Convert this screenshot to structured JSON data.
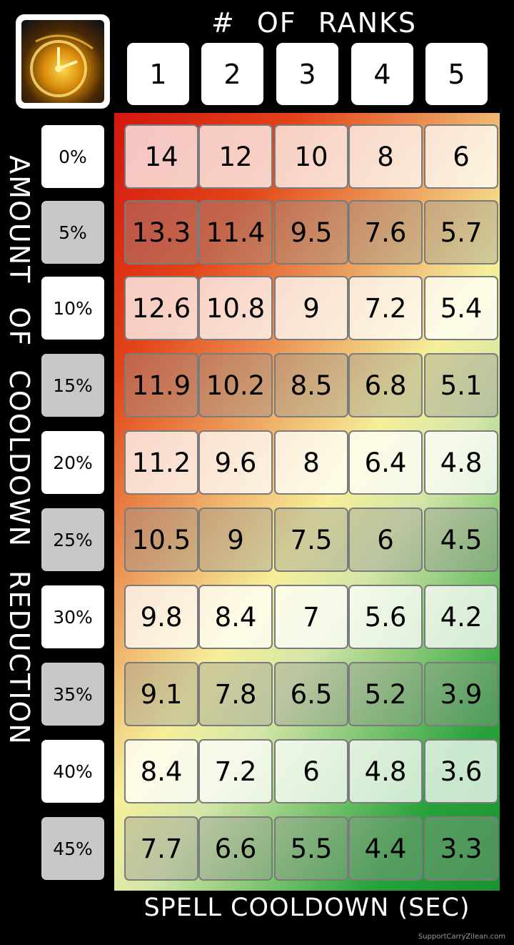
{
  "chart_data": {
    "type": "table",
    "title": "# OF RANKS",
    "ylabel": "AMOUNT OF COOLDOWN REDUCTION",
    "xlabel": "SPELL COOLDOWN (SEC)",
    "columns": [
      "1",
      "2",
      "3",
      "4",
      "5"
    ],
    "rows": [
      "0%",
      "5%",
      "10%",
      "15%",
      "20%",
      "25%",
      "30%",
      "35%",
      "40%",
      "45%"
    ],
    "values": [
      [
        "14",
        "12",
        "10",
        "8",
        "6"
      ],
      [
        "13.3",
        "11.4",
        "9.5",
        "7.6",
        "5.7"
      ],
      [
        "12.6",
        "10.8",
        "9",
        "7.2",
        "5.4"
      ],
      [
        "11.9",
        "10.2",
        "8.5",
        "6.8",
        "5.1"
      ],
      [
        "11.2",
        "9.6",
        "8",
        "6.4",
        "4.8"
      ],
      [
        "10.5",
        "9",
        "7.5",
        "6",
        "4.5"
      ],
      [
        "9.8",
        "8.4",
        "7",
        "5.6",
        "4.2"
      ],
      [
        "9.1",
        "7.8",
        "6.5",
        "5.2",
        "3.9"
      ],
      [
        "8.4",
        "7.2",
        "6",
        "4.8",
        "3.6"
      ],
      [
        "7.7",
        "6.6",
        "5.5",
        "4.4",
        "3.3"
      ]
    ],
    "colors": {
      "slow": "#d4160f",
      "mid": "#f6ef9a",
      "fast": "#27a23a"
    }
  },
  "icon": "clock-ability-icon",
  "watermark": "SupportCarryZilean.com"
}
